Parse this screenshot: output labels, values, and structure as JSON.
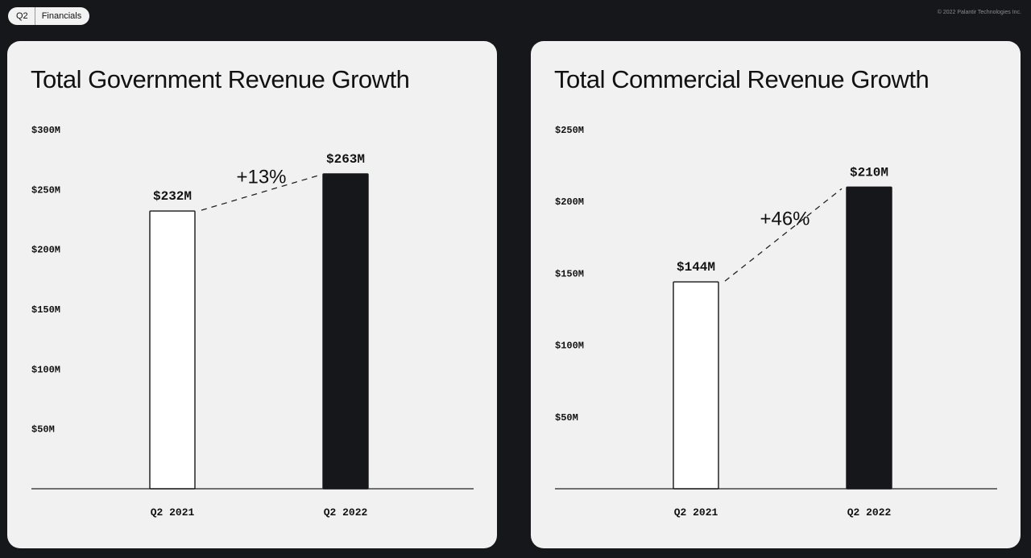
{
  "header": {
    "quarter": "Q2",
    "section": "Financials",
    "copyright": "© 2022 Palantir Technologies Inc."
  },
  "colors": {
    "background": "#16171b",
    "card": "#f1f1f1",
    "bar_prior": "#ffffff",
    "bar_current": "#16171b",
    "text": "#111111"
  },
  "chart_data": [
    {
      "type": "bar",
      "title": "Total Government Revenue Growth",
      "categories": [
        "Q2 2021",
        "Q2 2022"
      ],
      "values": [
        232,
        263
      ],
      "value_labels": [
        "$232M",
        "$263M"
      ],
      "growth_label": "+13%",
      "yticks": [
        50,
        100,
        150,
        200,
        250,
        300
      ],
      "ytick_labels": [
        "$50M",
        "$100M",
        "$150M",
        "$200M",
        "$250M",
        "$300M"
      ],
      "ylim": [
        0,
        300
      ],
      "xlabel": "",
      "ylabel": "",
      "grid": false,
      "legend": false
    },
    {
      "type": "bar",
      "title": "Total Commercial Revenue Growth",
      "categories": [
        "Q2 2021",
        "Q2 2022"
      ],
      "values": [
        144,
        210
      ],
      "value_labels": [
        "$144M",
        "$210M"
      ],
      "growth_label": "+46%",
      "yticks": [
        50,
        100,
        150,
        200,
        250
      ],
      "ytick_labels": [
        "$50M",
        "$100M",
        "$150M",
        "$200M",
        "$250M"
      ],
      "ylim": [
        0,
        250
      ],
      "xlabel": "",
      "ylabel": "",
      "grid": false,
      "legend": false
    }
  ]
}
